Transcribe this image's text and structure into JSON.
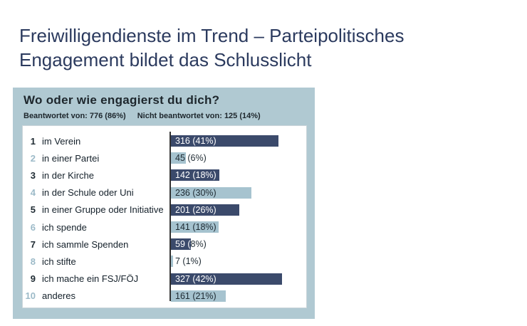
{
  "page": {
    "title_line1": "Freiwilligendienste im Trend – Parteipolitisches",
    "title_line2": "Engagement bildet das Schlusslicht"
  },
  "survey": {
    "question": "Wo oder wie engagierst du dich?",
    "answered": "Beantwortet von: 776 (86%)",
    "not_answered": "Nicht beantwortet von: 125 (14%)",
    "rows": [
      {
        "num": "1",
        "label": "im Verein",
        "value": 316,
        "pct": 41,
        "display": "316 (41%)",
        "tone": "dark"
      },
      {
        "num": "2",
        "label": "in einer Partei",
        "value": 45,
        "pct": 6,
        "display": "45 (6%)",
        "tone": "light"
      },
      {
        "num": "3",
        "label": "in der Kirche",
        "value": 142,
        "pct": 18,
        "display": "142 (18%)",
        "tone": "dark"
      },
      {
        "num": "4",
        "label": "in der Schule oder Uni",
        "value": 236,
        "pct": 30,
        "display": "236 (30%)",
        "tone": "light"
      },
      {
        "num": "5",
        "label": "in einer Gruppe oder Initiative",
        "value": 201,
        "pct": 26,
        "display": "201 (26%)",
        "tone": "dark"
      },
      {
        "num": "6",
        "label": "ich spende",
        "value": 141,
        "pct": 18,
        "display": "141 (18%)",
        "tone": "light"
      },
      {
        "num": "7",
        "label": "ich sammle Spenden",
        "value": 59,
        "pct": 8,
        "display": "59 (8%)",
        "tone": "dark"
      },
      {
        "num": "8",
        "label": "ich stifte",
        "value": 7,
        "pct": 1,
        "display": "7 (1%)",
        "tone": "light"
      },
      {
        "num": "9",
        "label": "ich mache ein FSJ/FÖJ",
        "value": 327,
        "pct": 42,
        "display": "327 (42%)",
        "tone": "dark"
      },
      {
        "num": "10",
        "label": "anderes",
        "value": 161,
        "pct": 21,
        "display": "161 (21%)",
        "tone": "light"
      }
    ]
  },
  "colors": {
    "bar_dark": "#3b4a6b",
    "bar_light": "#a6c3cf",
    "box_background": "#b0c9d2",
    "page_title": "#2b3a5e",
    "axis_line": "#333333",
    "text_dark": "#1e2a32",
    "number_light": "#9cbac8"
  },
  "chart_data": {
    "type": "bar",
    "orientation": "horizontal",
    "title": "Wo oder wie engagierst du dich?",
    "answered_label": "Beantwortet von: 776 (86%)",
    "not_answered_label": "Nicht beantwortet von: 125 (14%)",
    "categories": [
      "im Verein",
      "in einer Partei",
      "in der Kirche",
      "in der Schule oder Uni",
      "in einer Gruppe oder Initiative",
      "ich spende",
      "ich sammle Spenden",
      "ich stifte",
      "ich mache ein FSJ/FÖJ",
      "anderes"
    ],
    "values": [
      316,
      45,
      142,
      236,
      201,
      141,
      59,
      7,
      327,
      161
    ],
    "percent": [
      41,
      6,
      18,
      30,
      26,
      18,
      8,
      1,
      42,
      21
    ],
    "data_labels": [
      "316 (41%)",
      "45 (6%)",
      "142 (18%)",
      "236 (30%)",
      "201 (26%)",
      "141 (18%)",
      "59 (8%)",
      "7 (1%)",
      "327 (42%)",
      "161 (21%)"
    ],
    "bar_color_pattern": [
      "#3b4a6b",
      "#a6c3cf"
    ],
    "grid": false,
    "legend": false,
    "xlim_percent": [
      0,
      45
    ]
  }
}
